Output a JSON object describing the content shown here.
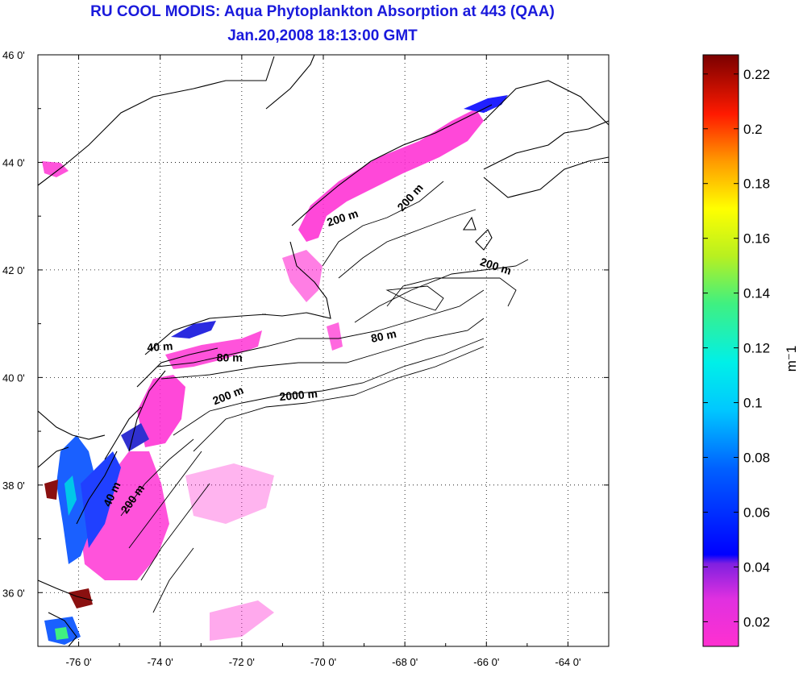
{
  "title": {
    "line1": "RU COOL MODIS: Aqua Phytoplankton Absorption at 443 (QAA)",
    "line2": "Jan.20,2008 18:13:00 GMT"
  },
  "map": {
    "lon_range": [
      -77,
      -63
    ],
    "lat_range": [
      35,
      46
    ],
    "lon_ticks": [
      "-76 0'",
      "-74 0'",
      "-72 0'",
      "-70 0'",
      "-68 0'",
      "-66 0'",
      "-64 0'"
    ],
    "lat_ticks": [
      "46 0'",
      "44 0'",
      "42 0'",
      "40 0'",
      "38 0'",
      "36 0'"
    ],
    "grid": true,
    "contour_labels": [
      {
        "text": "200 m",
        "lon": -67.8,
        "lat": 43.3,
        "rotate": -48
      },
      {
        "text": "200 m",
        "lon": -69.5,
        "lat": 42.9,
        "rotate": -18
      },
      {
        "text": "200 m",
        "lon": -65.8,
        "lat": 42.0,
        "rotate": 18
      },
      {
        "text": "80 m",
        "lon": -68.5,
        "lat": 40.7,
        "rotate": -12
      },
      {
        "text": "40 m",
        "lon": -74.0,
        "lat": 40.5,
        "rotate": -4
      },
      {
        "text": "80 m",
        "lon": -72.3,
        "lat": 40.3,
        "rotate": 0
      },
      {
        "text": "200 m",
        "lon": -72.3,
        "lat": 39.6,
        "rotate": -22
      },
      {
        "text": "2000 m",
        "lon": -70.6,
        "lat": 39.6,
        "rotate": -5
      },
      {
        "text": "40 m",
        "lon": -75.1,
        "lat": 37.8,
        "rotate": -65
      },
      {
        "text": "200 m",
        "lon": -74.6,
        "lat": 37.7,
        "rotate": -55
      }
    ]
  },
  "colorbar": {
    "range": [
      0.011,
      0.227
    ],
    "ticks": [
      "0.22",
      "0.2",
      "0.18",
      "0.16",
      "0.14",
      "0.12",
      "0.1",
      "0.08",
      "0.06",
      "0.04",
      "0.02"
    ],
    "unit": "m⁻1"
  },
  "colors": {
    "title": "#1a1adc",
    "low": "#ff22cc",
    "mid": "#0000ff",
    "high": "#7f0000"
  }
}
